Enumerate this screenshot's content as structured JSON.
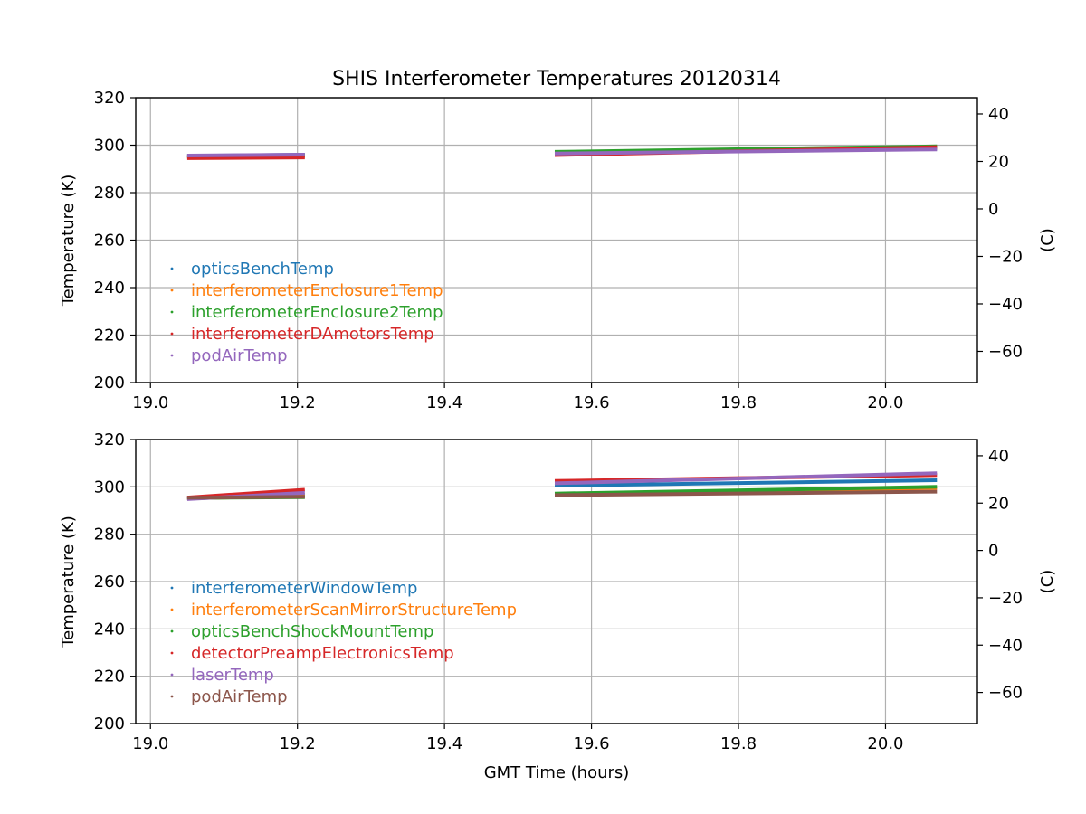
{
  "chart_data": {
    "type": "scatter",
    "title": "SHIS Interferometer Temperatures 20120314",
    "xlabel": "GMT Time (hours)",
    "xlim": [
      18.98,
      20.125
    ],
    "xticks": [
      19.0,
      19.2,
      19.4,
      19.6,
      19.8,
      20.0
    ],
    "xtick_labels": [
      "19.0",
      "19.2",
      "19.4",
      "19.6",
      "19.8",
      "20.0"
    ],
    "grid": true,
    "panels": [
      {
        "ylabel": "Temperature (K)",
        "ylim": [
          200,
          320
        ],
        "yticks": [
          200,
          220,
          240,
          260,
          280,
          300,
          320
        ],
        "ytick_labels": [
          "200",
          "220",
          "240",
          "260",
          "280",
          "300",
          "320"
        ],
        "ylabel_right": "(C)",
        "yticks_right": [
          -60,
          -40,
          -20,
          0,
          20,
          40
        ],
        "ytick_labels_right": [
          "−60",
          "−40",
          "−20",
          "0",
          "20",
          "40"
        ],
        "legend_position": "lower-left",
        "series": [
          {
            "name": "opticsBenchTemp",
            "color": "#1f77b4",
            "segments": [
              {
                "x": [
                  19.05,
                  19.21
                ],
                "y": [
                  295.5,
                  296.0
                ]
              },
              {
                "x": [
                  19.55,
                  20.07
                ],
                "y": [
                  296.5,
                  298.5
                ]
              }
            ]
          },
          {
            "name": "interferometerEnclosure1Temp",
            "color": "#ff7f0e",
            "segments": [
              {
                "x": [
                  19.05,
                  19.21
                ],
                "y": [
                  295.0,
                  295.3
                ]
              },
              {
                "x": [
                  19.55,
                  20.07
                ],
                "y": [
                  296.8,
                  299.0
                ]
              }
            ]
          },
          {
            "name": "interferometerEnclosure2Temp",
            "color": "#2ca02c",
            "segments": [
              {
                "x": [
                  19.05,
                  19.21
                ],
                "y": [
                  295.2,
                  295.6
                ]
              },
              {
                "x": [
                  19.55,
                  20.07
                ],
                "y": [
                  297.2,
                  299.5
                ]
              }
            ]
          },
          {
            "name": "interferometerDAmotorsTemp",
            "color": "#d62728",
            "segments": [
              {
                "x": [
                  19.05,
                  19.21
                ],
                "y": [
                  294.5,
                  294.8
                ]
              },
              {
                "x": [
                  19.55,
                  20.07
                ],
                "y": [
                  295.8,
                  299.2
                ]
              }
            ]
          },
          {
            "name": "podAirTemp",
            "color": "#9467bd",
            "segments": [
              {
                "x": [
                  19.05,
                  19.21
                ],
                "y": [
                  295.6,
                  296.0
                ]
              },
              {
                "x": [
                  19.55,
                  20.07
                ],
                "y": [
                  296.5,
                  298.2
                ]
              }
            ]
          }
        ]
      },
      {
        "ylabel": "Temperature (K)",
        "ylim": [
          200,
          320
        ],
        "yticks": [
          200,
          220,
          240,
          260,
          280,
          300,
          320
        ],
        "ytick_labels": [
          "200",
          "220",
          "240",
          "260",
          "280",
          "300",
          "320"
        ],
        "ylabel_right": "(C)",
        "yticks_right": [
          -60,
          -40,
          -20,
          0,
          20,
          40
        ],
        "ytick_labels_right": [
          "−60",
          "−40",
          "−20",
          "0",
          "20",
          "40"
        ],
        "legend_position": "lower-left",
        "series": [
          {
            "name": "interferometerWindowTemp",
            "color": "#1f77b4",
            "segments": [
              {
                "x": [
                  19.05,
                  19.21
                ],
                "y": [
                  295.0,
                  296.8
                ]
              },
              {
                "x": [
                  19.55,
                  20.07
                ],
                "y": [
                  300.5,
                  302.8
                ]
              }
            ]
          },
          {
            "name": "interferometerScanMirrorStructureTemp",
            "color": "#ff7f0e",
            "segments": [
              {
                "x": [
                  19.05,
                  19.21
                ],
                "y": [
                  295.2,
                  296.2
                ]
              },
              {
                "x": [
                  19.55,
                  20.07
                ],
                "y": [
                  297.0,
                  299.5
                ]
              }
            ]
          },
          {
            "name": "opticsBenchShockMountTemp",
            "color": "#2ca02c",
            "segments": [
              {
                "x": [
                  19.05,
                  19.21
                ],
                "y": [
                  295.3,
                  295.6
                ]
              },
              {
                "x": [
                  19.55,
                  20.07
                ],
                "y": [
                  297.2,
                  300.0
                ]
              }
            ]
          },
          {
            "name": "detectorPreampElectronicsTemp",
            "color": "#d62728",
            "segments": [
              {
                "x": [
                  19.05,
                  19.21
                ],
                "y": [
                  295.5,
                  298.8
                ]
              },
              {
                "x": [
                  19.55,
                  20.07
                ],
                "y": [
                  302.5,
                  305.0
                ]
              }
            ]
          },
          {
            "name": "laserTemp",
            "color": "#9467bd",
            "segments": [
              {
                "x": [
                  19.05,
                  19.21
                ],
                "y": [
                  294.8,
                  297.5
                ]
              },
              {
                "x": [
                  19.55,
                  20.07
                ],
                "y": [
                  301.5,
                  305.8
                ]
              }
            ]
          },
          {
            "name": "podAirTemp",
            "color": "#8c564b",
            "segments": [
              {
                "x": [
                  19.05,
                  19.21
                ],
                "y": [
                  295.4,
                  295.8
                ]
              },
              {
                "x": [
                  19.55,
                  20.07
                ],
                "y": [
                  296.5,
                  298.0
                ]
              }
            ]
          }
        ]
      }
    ]
  }
}
